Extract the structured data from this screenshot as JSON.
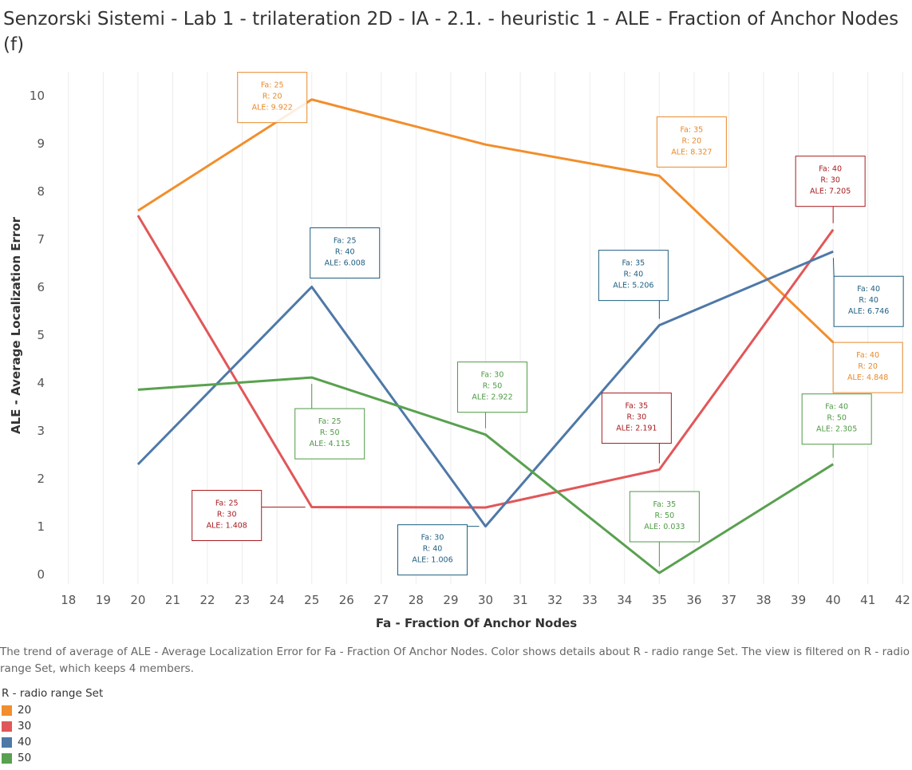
{
  "title": "Senzorski Sistemi - Lab 1 - trilateration 2D - IA - 2.1. - heuristic 1 - ALE - Fraction of Anchor Nodes (f)",
  "caption": "The trend of average of ALE - Average Localization Error for Fa - Fraction Of Anchor Nodes.  Color shows details about R - radio range Set. The view is filtered on R - radio range Set, which keeps 4 members.",
  "legend": {
    "title": "R - radio range Set",
    "items": [
      {
        "label": "20",
        "color": "#F28E2B"
      },
      {
        "label": "30",
        "color": "#E15759"
      },
      {
        "label": "40",
        "color": "#4E79A7"
      },
      {
        "label": "50",
        "color": "#59A14F"
      }
    ]
  },
  "chart_data": {
    "type": "line",
    "xlabel": "Fa - Fraction Of Anchor Nodes",
    "ylabel": "ALE - Average Localization Error",
    "xlim": [
      17.5,
      42.2
    ],
    "ylim": [
      -0.2,
      10.5
    ],
    "xticks": [
      18,
      19,
      20,
      21,
      22,
      23,
      24,
      25,
      26,
      27,
      28,
      29,
      30,
      31,
      32,
      33,
      34,
      35,
      36,
      37,
      38,
      39,
      40,
      41,
      42
    ],
    "yticks": [
      0,
      1,
      2,
      3,
      4,
      5,
      6,
      7,
      8,
      9,
      10
    ],
    "x": [
      20,
      25,
      30,
      35,
      40
    ],
    "grid": "vertical",
    "series": [
      {
        "name": "20",
        "color": "#F28E2B",
        "label_color": "#E8892A",
        "values": [
          7.6,
          9.922,
          8.98,
          8.327,
          4.848
        ]
      },
      {
        "name": "30",
        "color": "#E15759",
        "label_color": "#A71B1F",
        "values": [
          7.5,
          1.408,
          1.4,
          2.191,
          7.205
        ]
      },
      {
        "name": "40",
        "color": "#4E79A7",
        "label_color": "#1E5E80",
        "values": [
          2.3,
          6.008,
          1.006,
          5.206,
          6.746
        ]
      },
      {
        "name": "50",
        "color": "#59A14F",
        "label_color": "#4E9A44",
        "values": [
          3.86,
          4.115,
          2.922,
          0.033,
          2.305
        ]
      }
    ],
    "annotations": [
      {
        "series": 0,
        "x": 25,
        "y": 9.922,
        "lines": [
          "Fa: 25",
          "R: 20",
          "ALE: 9.922"
        ]
      },
      {
        "series": 0,
        "x": 35,
        "y": 8.327,
        "lines": [
          "Fa: 35",
          "R: 20",
          "ALE: 8.327"
        ]
      },
      {
        "series": 0,
        "x": 40,
        "y": 4.848,
        "lines": [
          "Fa: 40",
          "R: 20",
          "ALE: 4.848"
        ]
      },
      {
        "series": 1,
        "x": 25,
        "y": 1.408,
        "lines": [
          "Fa: 25",
          "R: 30",
          "ALE: 1.408"
        ]
      },
      {
        "series": 1,
        "x": 35,
        "y": 2.191,
        "lines": [
          "Fa: 35",
          "R: 30",
          "ALE: 2.191"
        ]
      },
      {
        "series": 1,
        "x": 40,
        "y": 7.205,
        "lines": [
          "Fa: 40",
          "R: 30",
          "ALE: 7.205"
        ]
      },
      {
        "series": 2,
        "x": 25,
        "y": 6.008,
        "lines": [
          "Fa: 25",
          "R: 40",
          "ALE: 6.008"
        ]
      },
      {
        "series": 2,
        "x": 30,
        "y": 1.006,
        "lines": [
          "Fa: 30",
          "R: 40",
          "ALE: 1.006"
        ]
      },
      {
        "series": 2,
        "x": 35,
        "y": 5.206,
        "lines": [
          "Fa: 35",
          "R: 40",
          "ALE: 5.206"
        ]
      },
      {
        "series": 2,
        "x": 40,
        "y": 6.746,
        "lines": [
          "Fa: 40",
          "R: 40",
          "ALE: 6.746"
        ]
      },
      {
        "series": 3,
        "x": 25,
        "y": 4.115,
        "lines": [
          "Fa: 25",
          "R: 50",
          "ALE: 4.115"
        ]
      },
      {
        "series": 3,
        "x": 30,
        "y": 2.922,
        "lines": [
          "Fa: 30",
          "R: 50",
          "ALE: 2.922"
        ]
      },
      {
        "series": 3,
        "x": 35,
        "y": 0.033,
        "lines": [
          "Fa: 35",
          "R: 50",
          "ALE: 0.033"
        ]
      },
      {
        "series": 3,
        "x": 40,
        "y": 2.305,
        "lines": [
          "Fa: 40",
          "R: 50",
          "ALE: 2.305"
        ]
      }
    ]
  }
}
